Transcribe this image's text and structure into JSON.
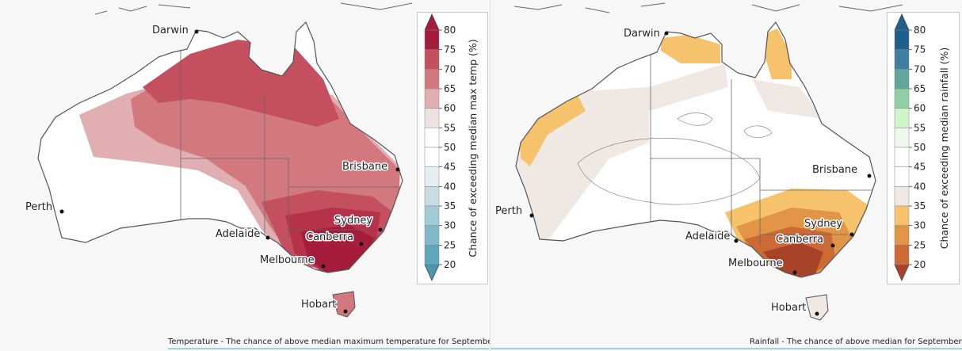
{
  "maps": [
    {
      "id": "temperature",
      "caption": "Temperature - The chance of above median maximum temperature for September",
      "legend": {
        "title": "Chance of exceeding median max temp (%)",
        "ticks": [
          "80",
          "75",
          "70",
          "65",
          "60",
          "55",
          "50",
          "45",
          "40",
          "35",
          "30",
          "25",
          "20"
        ],
        "colors": [
          "#a51d3a",
          "#c4505f",
          "#d1797f",
          "#e1aeb1",
          "#efe2e3",
          "#ffffff",
          "#ffffff",
          "#e6eef1",
          "#c7dde3",
          "#a3cbd6",
          "#7fb8c8",
          "#5ea6ba",
          "#4b97ab"
        ]
      },
      "cities": [
        "Darwin",
        "Brisbane",
        "Perth",
        "Sydney",
        "Adelaide",
        "Canberra",
        "Melbourne",
        "Hobart"
      ]
    },
    {
      "id": "rainfall",
      "caption": "Rainfall - The chance of above median for September",
      "legend": {
        "title": "Chance of exceeding median rainfall (%)",
        "ticks": [
          "80",
          "75",
          "70",
          "65",
          "60",
          "55",
          "50",
          "45",
          "40",
          "35",
          "30",
          "25",
          "20"
        ],
        "colors": [
          "#1f5f8b",
          "#3e7fa3",
          "#63a69e",
          "#8fd0a6",
          "#cdf5c6",
          "#eef8ec",
          "#ffffff",
          "#ffffff",
          "#efe8e3",
          "#f6c26b",
          "#e29546",
          "#cc6a36",
          "#a8432a"
        ]
      },
      "cities": [
        "Darwin",
        "Brisbane",
        "Perth",
        "Sydney",
        "Adelaide",
        "Canberra",
        "Melbourne",
        "Hobart"
      ]
    }
  ]
}
